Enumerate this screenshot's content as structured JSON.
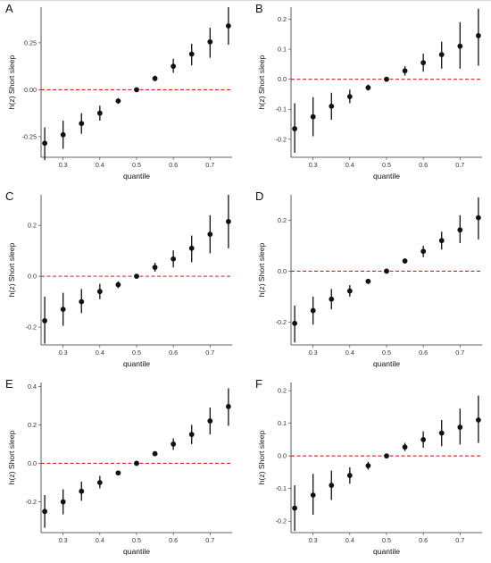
{
  "chart_data": [
    {
      "panel": "A",
      "type": "scatter",
      "xlabel": "quantile",
      "ylabel": "h(z) Short sleep",
      "xlim": [
        0.24,
        0.76
      ],
      "ylim": [
        -0.36,
        0.44
      ],
      "xticks": [
        "0.3",
        "0.4",
        "0.5",
        "0.6",
        "0.7"
      ],
      "yticks": [
        "-0.25",
        "0.00",
        "0.25"
      ],
      "y_reference_line": 0,
      "points": [
        {
          "x": 0.25,
          "y": -0.285,
          "lo": -0.375,
          "hi": -0.2
        },
        {
          "x": 0.3,
          "y": -0.24,
          "lo": -0.315,
          "hi": -0.165
        },
        {
          "x": 0.35,
          "y": -0.18,
          "lo": -0.235,
          "hi": -0.125
        },
        {
          "x": 0.4,
          "y": -0.125,
          "lo": -0.165,
          "hi": -0.085
        },
        {
          "x": 0.45,
          "y": -0.06,
          "lo": -0.075,
          "hi": -0.045
        },
        {
          "x": 0.5,
          "y": 0.0,
          "lo": 0.0,
          "hi": 0.0
        },
        {
          "x": 0.55,
          "y": 0.06,
          "lo": 0.045,
          "hi": 0.075
        },
        {
          "x": 0.6,
          "y": 0.125,
          "lo": 0.09,
          "hi": 0.165
        },
        {
          "x": 0.65,
          "y": 0.19,
          "lo": 0.13,
          "hi": 0.245
        },
        {
          "x": 0.7,
          "y": 0.255,
          "lo": 0.17,
          "hi": 0.33
        },
        {
          "x": 0.75,
          "y": 0.34,
          "lo": 0.24,
          "hi": 0.44
        }
      ]
    },
    {
      "panel": "B",
      "type": "scatter",
      "xlabel": "quantile",
      "ylabel": "h(z) Short sleep",
      "xlim": [
        0.24,
        0.76
      ],
      "ylim": [
        -0.26,
        0.24
      ],
      "xticks": [
        "0.3",
        "0.4",
        "0.5",
        "0.6",
        "0.7"
      ],
      "yticks": [
        "-0.2",
        "-0.1",
        "0.0",
        "0.1",
        "0.2"
      ],
      "y_reference_line": 0,
      "points": [
        {
          "x": 0.25,
          "y": -0.165,
          "lo": -0.245,
          "hi": -0.08
        },
        {
          "x": 0.3,
          "y": -0.125,
          "lo": -0.19,
          "hi": -0.06
        },
        {
          "x": 0.35,
          "y": -0.09,
          "lo": -0.135,
          "hi": -0.045
        },
        {
          "x": 0.4,
          "y": -0.058,
          "lo": -0.08,
          "hi": -0.035
        },
        {
          "x": 0.45,
          "y": -0.028,
          "lo": -0.038,
          "hi": -0.018
        },
        {
          "x": 0.5,
          "y": 0.0,
          "lo": 0.0,
          "hi": 0.0
        },
        {
          "x": 0.55,
          "y": 0.028,
          "lo": 0.012,
          "hi": 0.043
        },
        {
          "x": 0.6,
          "y": 0.055,
          "lo": 0.025,
          "hi": 0.085
        },
        {
          "x": 0.65,
          "y": 0.082,
          "lo": 0.035,
          "hi": 0.125
        },
        {
          "x": 0.7,
          "y": 0.11,
          "lo": 0.035,
          "hi": 0.19
        },
        {
          "x": 0.75,
          "y": 0.145,
          "lo": 0.045,
          "hi": 0.235
        }
      ]
    },
    {
      "panel": "C",
      "type": "scatter",
      "xlabel": "quantile",
      "ylabel": "h(z) Short sleep",
      "xlim": [
        0.24,
        0.76
      ],
      "ylim": [
        -0.27,
        0.32
      ],
      "xticks": [
        "0.3",
        "0.4",
        "0.5",
        "0.6",
        "0.7"
      ],
      "yticks": [
        "-0.2",
        "0.0",
        "0.2"
      ],
      "y_reference_line": 0,
      "points": [
        {
          "x": 0.25,
          "y": -0.175,
          "lo": -0.265,
          "hi": -0.08
        },
        {
          "x": 0.3,
          "y": -0.13,
          "lo": -0.195,
          "hi": -0.065
        },
        {
          "x": 0.35,
          "y": -0.1,
          "lo": -0.145,
          "hi": -0.05
        },
        {
          "x": 0.4,
          "y": -0.06,
          "lo": -0.09,
          "hi": -0.03
        },
        {
          "x": 0.45,
          "y": -0.033,
          "lo": -0.047,
          "hi": -0.02
        },
        {
          "x": 0.5,
          "y": 0.0,
          "lo": 0.0,
          "hi": 0.0
        },
        {
          "x": 0.55,
          "y": 0.035,
          "lo": 0.018,
          "hi": 0.053
        },
        {
          "x": 0.6,
          "y": 0.068,
          "lo": 0.035,
          "hi": 0.102
        },
        {
          "x": 0.65,
          "y": 0.11,
          "lo": 0.055,
          "hi": 0.16
        },
        {
          "x": 0.7,
          "y": 0.165,
          "lo": 0.09,
          "hi": 0.24
        },
        {
          "x": 0.75,
          "y": 0.215,
          "lo": 0.11,
          "hi": 0.32
        }
      ]
    },
    {
      "panel": "D",
      "type": "scatter",
      "xlabel": "quantile",
      "ylabel": "h(z) Short sleep",
      "xlim": [
        0.24,
        0.76
      ],
      "ylim": [
        -0.29,
        0.3
      ],
      "xticks": [
        "0.3",
        "0.4",
        "0.5",
        "0.6",
        "0.7"
      ],
      "yticks": [
        "-0.2",
        "0.0",
        "0.2"
      ],
      "y_reference_line": 0,
      "points": [
        {
          "x": 0.25,
          "y": -0.205,
          "lo": -0.28,
          "hi": -0.135
        },
        {
          "x": 0.3,
          "y": -0.155,
          "lo": -0.21,
          "hi": -0.1
        },
        {
          "x": 0.35,
          "y": -0.11,
          "lo": -0.15,
          "hi": -0.07
        },
        {
          "x": 0.4,
          "y": -0.078,
          "lo": -0.1,
          "hi": -0.055
        },
        {
          "x": 0.45,
          "y": -0.04,
          "lo": -0.05,
          "hi": -0.03
        },
        {
          "x": 0.5,
          "y": 0.0,
          "lo": 0.0,
          "hi": 0.0
        },
        {
          "x": 0.55,
          "y": 0.04,
          "lo": 0.03,
          "hi": 0.05
        },
        {
          "x": 0.6,
          "y": 0.078,
          "lo": 0.055,
          "hi": 0.1
        },
        {
          "x": 0.65,
          "y": 0.12,
          "lo": 0.085,
          "hi": 0.155
        },
        {
          "x": 0.7,
          "y": 0.162,
          "lo": 0.11,
          "hi": 0.22
        },
        {
          "x": 0.75,
          "y": 0.21,
          "lo": 0.125,
          "hi": 0.29
        }
      ]
    },
    {
      "panel": "E",
      "type": "scatter",
      "xlabel": "quantile",
      "ylabel": "h(z) Short sleep",
      "xlim": [
        0.24,
        0.76
      ],
      "ylim": [
        -0.36,
        0.42
      ],
      "xticks": [
        "0.3",
        "0.4",
        "0.5",
        "0.6",
        "0.7"
      ],
      "yticks": [
        "-0.2",
        "0.0",
        "0.2",
        "0.4"
      ],
      "y_reference_line": 0,
      "points": [
        {
          "x": 0.25,
          "y": -0.25,
          "lo": -0.335,
          "hi": -0.165
        },
        {
          "x": 0.3,
          "y": -0.2,
          "lo": -0.265,
          "hi": -0.135
        },
        {
          "x": 0.35,
          "y": -0.145,
          "lo": -0.195,
          "hi": -0.095
        },
        {
          "x": 0.4,
          "y": -0.1,
          "lo": -0.13,
          "hi": -0.065
        },
        {
          "x": 0.45,
          "y": -0.05,
          "lo": -0.062,
          "hi": -0.038
        },
        {
          "x": 0.5,
          "y": 0.0,
          "lo": 0.0,
          "hi": 0.0
        },
        {
          "x": 0.55,
          "y": 0.05,
          "lo": 0.038,
          "hi": 0.063
        },
        {
          "x": 0.6,
          "y": 0.1,
          "lo": 0.07,
          "hi": 0.13
        },
        {
          "x": 0.65,
          "y": 0.15,
          "lo": 0.1,
          "hi": 0.2
        },
        {
          "x": 0.7,
          "y": 0.22,
          "lo": 0.15,
          "hi": 0.29
        },
        {
          "x": 0.75,
          "y": 0.295,
          "lo": 0.195,
          "hi": 0.39
        }
      ]
    },
    {
      "panel": "F",
      "type": "scatter",
      "xlabel": "quantile",
      "ylabel": "h(z) Short sleep",
      "xlim": [
        0.24,
        0.76
      ],
      "ylim": [
        -0.235,
        0.225
      ],
      "xticks": [
        "0.3",
        "0.4",
        "0.5",
        "0.6",
        "0.7"
      ],
      "yticks": [
        "-0.2",
        "-0.1",
        "0.0",
        "0.1",
        "0.2"
      ],
      "y_reference_line": 0,
      "points": [
        {
          "x": 0.25,
          "y": -0.16,
          "lo": -0.23,
          "hi": -0.09
        },
        {
          "x": 0.3,
          "y": -0.12,
          "lo": -0.18,
          "hi": -0.055
        },
        {
          "x": 0.35,
          "y": -0.09,
          "lo": -0.135,
          "hi": -0.045
        },
        {
          "x": 0.4,
          "y": -0.06,
          "lo": -0.085,
          "hi": -0.035
        },
        {
          "x": 0.45,
          "y": -0.03,
          "lo": -0.042,
          "hi": -0.018
        },
        {
          "x": 0.5,
          "y": 0.0,
          "lo": 0.0,
          "hi": 0.0
        },
        {
          "x": 0.55,
          "y": 0.027,
          "lo": 0.015,
          "hi": 0.04
        },
        {
          "x": 0.6,
          "y": 0.05,
          "lo": 0.025,
          "hi": 0.075
        },
        {
          "x": 0.65,
          "y": 0.07,
          "lo": 0.03,
          "hi": 0.11
        },
        {
          "x": 0.7,
          "y": 0.088,
          "lo": 0.035,
          "hi": 0.145
        },
        {
          "x": 0.75,
          "y": 0.11,
          "lo": 0.04,
          "hi": 0.185
        }
      ]
    }
  ],
  "colors": {
    "point": "#111111",
    "reference_line": "#cc2222",
    "axis": "#333333"
  }
}
